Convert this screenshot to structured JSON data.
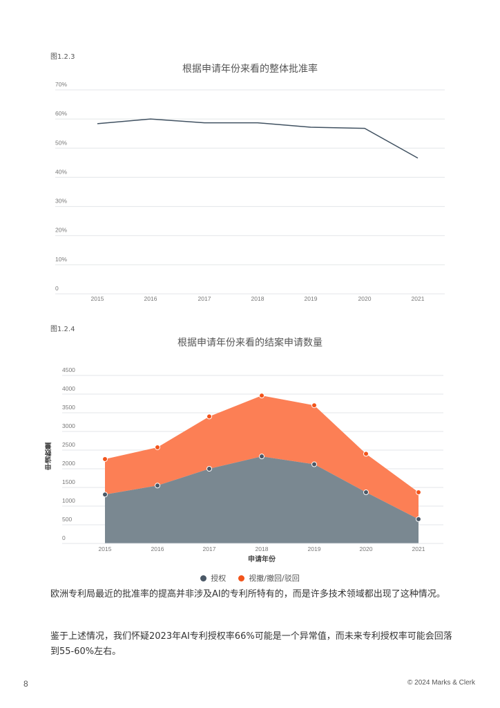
{
  "figures": [
    {
      "label": "图1.2.3",
      "title": "根据申请年份来看的整体批准率"
    },
    {
      "label": "图1.2.4",
      "title": "根据申请年份来看的结案申请数量",
      "xlabel": "申请年份",
      "ylabel": "申请数量",
      "legend": [
        {
          "label": "授权",
          "color": "#4a5866"
        },
        {
          "label": "视撤/撤回/驳回",
          "color": "#f2541b"
        }
      ]
    }
  ],
  "chart_data": [
    {
      "type": "line",
      "title": "根据申请年份来看的整体批准率",
      "xlabel": "",
      "ylabel": "",
      "categories": [
        "2015",
        "2016",
        "2017",
        "2018",
        "2019",
        "2020",
        "2021"
      ],
      "values": [
        58.4,
        60.0,
        58.7,
        58.7,
        57.2,
        56.8,
        46.6
      ],
      "y_ticks": [
        "0",
        "10%",
        "20%",
        "30%",
        "40%",
        "50%",
        "60%",
        "70%"
      ],
      "ylim": [
        0,
        70
      ],
      "grid": true,
      "line_color": "#3f5060"
    },
    {
      "type": "area",
      "stacked": true,
      "title": "根据申请年份来看的结案申请数量",
      "xlabel": "申请年份",
      "ylabel": "申请数量",
      "categories": [
        "2015",
        "2016",
        "2017",
        "2018",
        "2019",
        "2020",
        "2021"
      ],
      "series": [
        {
          "name": "授权",
          "values": [
            1310,
            1550,
            2000,
            2330,
            2120,
            1370,
            650
          ],
          "color": "#7a8891"
        },
        {
          "name": "视撤/撤回/驳回",
          "values": [
            950,
            1025,
            1400,
            1630,
            1580,
            1030,
            720
          ],
          "color": "#fc7f55"
        }
      ],
      "totals": [
        2260,
        2575,
        3400,
        3960,
        3700,
        2400,
        1370
      ],
      "y_ticks": [
        "0",
        "500",
        "1000",
        "1500",
        "2000",
        "2500",
        "3000",
        "3500",
        "4000",
        "4500"
      ],
      "ylim": [
        0,
        4500
      ],
      "grid": true,
      "legend_position": "bottom"
    }
  ],
  "body": {
    "paragraphs": [
      "欧洲专利局最近的批准率的提高并非涉及AI的专利所特有的，而是许多技术领域都出现了这种情况。",
      "鉴于上述情况，我们怀疑2023年AI专利授权率66%可能是一个异常值，而未来专利授权率可能会回落到55-60%左右。"
    ]
  },
  "footer": {
    "page_number": "8",
    "copyright": "© 2024 Marks & Clerk"
  }
}
